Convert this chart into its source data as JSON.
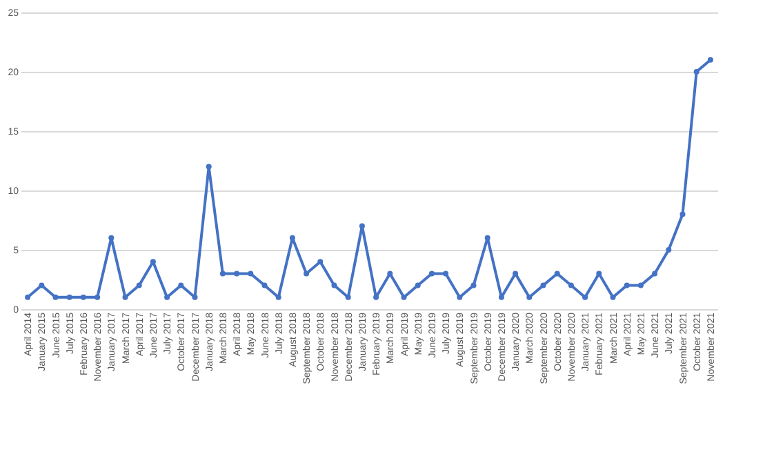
{
  "chart_data": {
    "type": "line",
    "categories": [
      "April 2014",
      "January 2015",
      "June 2015",
      "July 2015",
      "February 2016",
      "November 2016",
      "January 2017",
      "March 2017",
      "April 2017",
      "June 2017",
      "July 2017",
      "October 2017",
      "December 2017",
      "January 2018",
      "March 2018",
      "April 2018",
      "May 2018",
      "June 2018",
      "July 2018",
      "August 2018",
      "September 2018",
      "October 2018",
      "November 2018",
      "December 2018",
      "January 2019",
      "February 2019",
      "March 2019",
      "April 2019",
      "May 2019",
      "June 2019",
      "July 2019",
      "August 2019",
      "September 2019",
      "October 2019",
      "December 2019",
      "January 2020",
      "March 2020",
      "September 2020",
      "October 2020",
      "November 2020",
      "January 2021",
      "February 2021",
      "March 2021",
      "April 2021",
      "May 2021",
      "June 2021",
      "July 2021",
      "September 2021",
      "October 2021",
      "November 2021"
    ],
    "series": [
      {
        "color": "#4472c4",
        "values": [
          1,
          2,
          1,
          1,
          1,
          1,
          6,
          1,
          2,
          4,
          1,
          2,
          1,
          12,
          3,
          3,
          3,
          2,
          1,
          6,
          3,
          4,
          2,
          1,
          7,
          1,
          3,
          1,
          2,
          3,
          3,
          1,
          2,
          6,
          1,
          3,
          1,
          2,
          3,
          2,
          1,
          3,
          1,
          2,
          2,
          3,
          5,
          8,
          20,
          21
        ]
      }
    ],
    "ylim": [
      0,
      25
    ],
    "yticks": [
      0,
      5,
      10,
      15,
      20,
      25
    ],
    "grid": "y",
    "marker": "circle",
    "line_style": "solid"
  }
}
